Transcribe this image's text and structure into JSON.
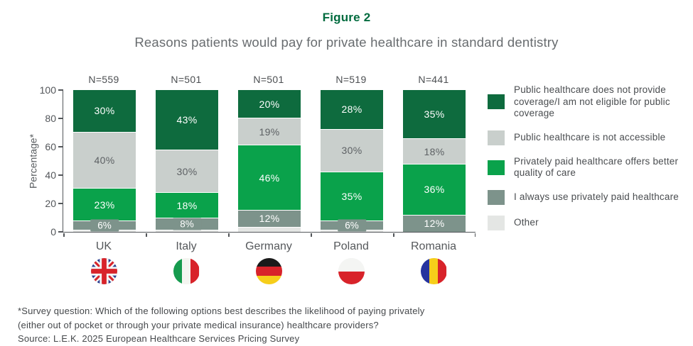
{
  "header": {
    "figure_label": "Figure 2",
    "title": "Reasons patients would pay for private healthcare in standard dentistry"
  },
  "colors": {
    "title_green": "#006b3e",
    "dark_green": "#0e6b3e",
    "light_gray": "#c9cfcc",
    "bright_green": "#0aa24b",
    "gray_green": "#7d938b",
    "pale_gray": "#e4e6e4",
    "axis_gray": "#53565a"
  },
  "chart_data": {
    "type": "bar",
    "stacked": true,
    "title": "Reasons patients would pay for private healthcare in standard dentistry",
    "xlabel": "",
    "ylabel": "Percentage*",
    "ylim": [
      0,
      100
    ],
    "yticks": [
      0,
      20,
      40,
      60,
      80,
      100
    ],
    "grid": false,
    "legend_position": "right",
    "categories": [
      "UK",
      "Italy",
      "Germany",
      "Poland",
      "Romania"
    ],
    "sample_sizes": [
      "N=559",
      "N=501",
      "N=501",
      "N=519",
      "N=441"
    ],
    "flags": [
      "uk",
      "italy",
      "germany",
      "poland",
      "romania"
    ],
    "series": [
      {
        "name": "Public healthcare does not provide coverage/I am not eligible for public coverage",
        "color": "#0e6b3e",
        "text_color": "#ffffff",
        "values": [
          30,
          43,
          20,
          28,
          35
        ],
        "labels": [
          "30%",
          "43%",
          "20%",
          "28%",
          "35%"
        ]
      },
      {
        "name": "Public healthcare is not accessible",
        "color": "#c9cfcc",
        "text_color": "#5d6164",
        "values": [
          40,
          30,
          19,
          30,
          18
        ],
        "labels": [
          "40%",
          "30%",
          "19%",
          "30%",
          "18%"
        ]
      },
      {
        "name": "Privately paid healthcare offers better quality of care",
        "color": "#0aa24b",
        "text_color": "#ffffff",
        "values": [
          23,
          18,
          46,
          35,
          36
        ],
        "labels": [
          "23%",
          "18%",
          "46%",
          "35%",
          "36%"
        ]
      },
      {
        "name": "I always use privately paid healthcare",
        "color": "#7d938b",
        "text_color": "#ffffff",
        "values": [
          6,
          8,
          12,
          6,
          12
        ],
        "labels": [
          "6%",
          "8%",
          "12%",
          "6%",
          "12%"
        ]
      },
      {
        "name": "Other",
        "color": "#e4e6e4",
        "text_color": "#5d6164",
        "values": [
          1,
          1,
          3,
          1,
          0
        ],
        "labels": [
          "",
          "",
          "",
          "",
          ""
        ]
      }
    ]
  },
  "footnote": {
    "line1": "*Survey question: Which of the following options best describes the likelihood of paying privately",
    "line2": "(either out of pocket or through your private medical insurance) healthcare providers?",
    "line3": "Source: L.E.K. 2025 European Healthcare Services Pricing Survey"
  }
}
